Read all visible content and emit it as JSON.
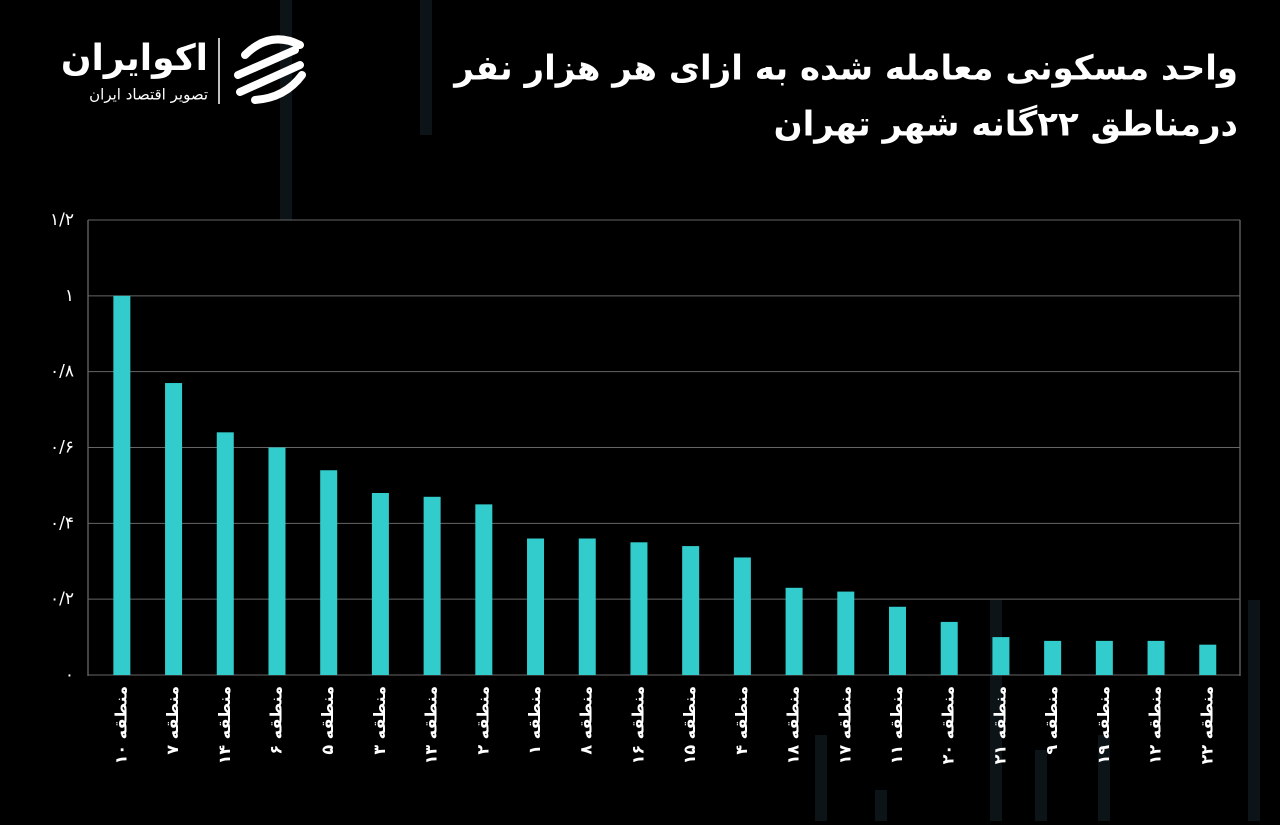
{
  "logo": {
    "name": "اکوایران",
    "tagline": "تصویر اقتصاد ایران"
  },
  "chart_data": {
    "type": "bar",
    "title": "واحد مسکونی معامله شده به ازای هر هزار نفر",
    "subtitle": "درمناطق ۲۲گانه شهر تهران",
    "categories": [
      "منطقه ۱۰",
      "منطقه ۷",
      "منطقه ۱۴",
      "منطقه ۶",
      "منطقه ۵",
      "منطقه ۳",
      "منطقه ۱۳",
      "منطقه ۲",
      "منطقه ۱",
      "منطقه ۸",
      "منطقه ۱۶",
      "منطقه ۱۵",
      "منطقه ۴",
      "منطقه ۱۸",
      "منطقه ۱۷",
      "منطقه ۱۱",
      "منطقه ۲۰",
      "منطقه ۲۱",
      "منطقه ۹",
      "منطقه ۱۹",
      "منطقه ۱۲",
      "منطقه ۲۲"
    ],
    "values": [
      1.0,
      0.77,
      0.64,
      0.6,
      0.54,
      0.48,
      0.47,
      0.45,
      0.36,
      0.36,
      0.35,
      0.34,
      0.31,
      0.23,
      0.22,
      0.18,
      0.14,
      0.1,
      0.09,
      0.09,
      0.09,
      0.08
    ],
    "color": "#33cccc",
    "ylim": [
      0,
      1.2
    ],
    "yticks": [
      {
        "value": 0,
        "label": "۰"
      },
      {
        "value": 0.2,
        "label": "۰/۲"
      },
      {
        "value": 0.4,
        "label": "۰/۴"
      },
      {
        "value": 0.6,
        "label": "۰/۶"
      },
      {
        "value": 0.8,
        "label": "۰/۸"
      },
      {
        "value": 1,
        "label": "۱"
      },
      {
        "value": 1.2,
        "label": "۱/۲"
      }
    ],
    "grid": true
  }
}
